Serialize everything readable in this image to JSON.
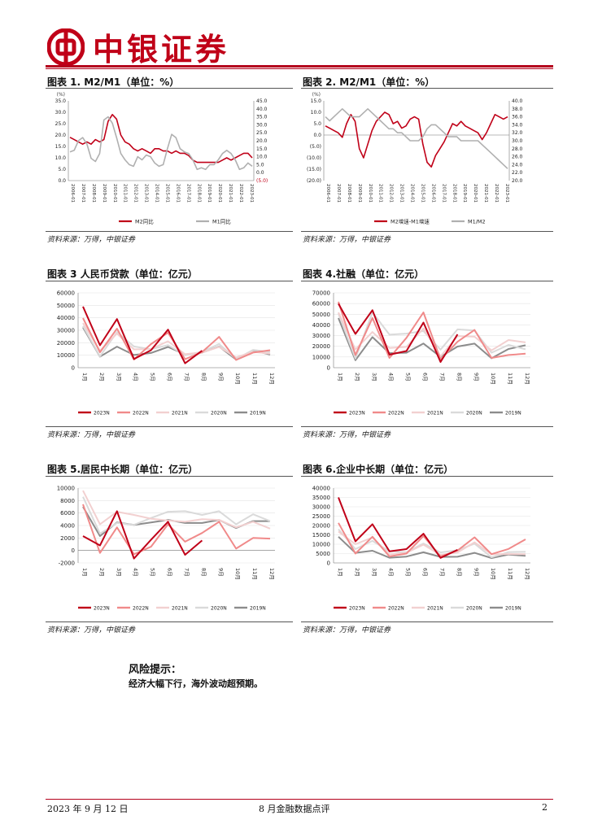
{
  "header": {
    "brand": "中银证券"
  },
  "panels": [
    {
      "title": "图表 1. M2/M1（单位：%）",
      "source": "资料来源：万得，中银证券",
      "chart_data": {
        "type": "line",
        "unit_label": "(%)",
        "left_ylim": [
          0,
          35
        ],
        "left_ticks": [
          "35.0",
          "30.0",
          "25.0",
          "20.0",
          "15.0",
          "10.0",
          "5.0",
          "0.0"
        ],
        "right_ylim": [
          -5,
          45
        ],
        "right_ticks": [
          "45.0",
          "40.0",
          "35.0",
          "30.0",
          "25.0",
          "20.0",
          "15.0",
          "10.0",
          "5.0",
          "0.0",
          "(5.0)"
        ],
        "x_ticks": [
          "2006-01",
          "2007-01",
          "2008-01",
          "2009-01",
          "2010-01",
          "2011-01",
          "2012-01",
          "2013-01",
          "2014-01",
          "2015-01",
          "2016-01",
          "2017-01",
          "2018-01",
          "2019-01",
          "2020-01",
          "2021-01",
          "2022-01",
          "2023-01"
        ],
        "series": [
          {
            "name": "M2同比",
            "axis": "left",
            "color": "#c00018",
            "values": [
              19,
              18,
              17,
              16,
              17,
              16,
              18,
              17,
              18,
              26,
              29,
              27,
              20,
              17,
              16,
              14,
              13,
              14,
              13,
              12,
              14,
              14,
              13,
              13,
              12,
              13,
              12,
              12,
              11,
              9,
              8,
              8,
              8,
              8,
              8,
              8,
              9,
              10,
              9,
              10,
              11,
              12,
              12,
              10
            ]
          },
          {
            "name": "M1同比",
            "axis": "right",
            "color": "#b0b0b0",
            "values": [
              13,
              14,
              20,
              22,
              18,
              9,
              7,
              12,
              33,
              35,
              31,
              22,
              12,
              8,
              5,
              4,
              10,
              8,
              11,
              10,
              6,
              4,
              5,
              15,
              24,
              22,
              15,
              13,
              12,
              8,
              2,
              3,
              2,
              5,
              5,
              8,
              12,
              14,
              12,
              8,
              2,
              3,
              6,
              4
            ]
          }
        ]
      }
    },
    {
      "title": "图表 2. M2/M1（单位：%）",
      "source": "资料来源：万得，中银证券",
      "chart_data": {
        "type": "line",
        "unit_label": "(%)",
        "left_ylim": [
          -20,
          15
        ],
        "left_ticks": [
          "15.0",
          "10.0",
          "5.0",
          "0.0",
          "(5.0)",
          "(10.0)",
          "(15.0)",
          "(20.0)"
        ],
        "right_ylim": [
          20,
          40
        ],
        "right_ticks": [
          "40.0",
          "38.0",
          "36.0",
          "34.0",
          "32.0",
          "30.0",
          "28.0",
          "26.0",
          "24.0",
          "22.0",
          "20.0"
        ],
        "x_ticks": [
          "2006-01",
          "2007-01",
          "2008-01",
          "2009-01",
          "2010-01",
          "2011-01",
          "2012-01",
          "2013-01",
          "2014-01",
          "2015-01",
          "2016-01",
          "2017-01",
          "2018-01",
          "2019-01",
          "2020-01",
          "2021-01",
          "2022-01",
          "2023-01"
        ],
        "series": [
          {
            "name": "M2增速-M1增速",
            "axis": "left",
            "color": "#c00018",
            "values": [
              4,
              3,
              2,
              1,
              -1,
              5,
              9,
              6,
              -6,
              -10,
              -4,
              2,
              6,
              8,
              10,
              9,
              5,
              6,
              3,
              4,
              7,
              8,
              7,
              -4,
              -12,
              -14,
              -9,
              -6,
              -3,
              1,
              5,
              4,
              6,
              4,
              3,
              2,
              1,
              -2,
              1,
              5,
              9,
              8,
              7,
              8
            ]
          },
          {
            "name": "M1/M2",
            "axis": "right",
            "color": "#b0b0b0",
            "values": [
              36,
              35,
              36,
              37,
              38,
              37,
              36,
              36,
              36,
              37,
              38,
              37,
              36,
              35,
              34,
              33,
              33,
              32,
              32,
              31,
              30,
              30,
              30,
              31,
              33,
              34,
              34,
              33,
              32,
              31,
              31,
              31,
              30,
              30,
              30,
              30,
              30,
              29,
              28,
              27,
              26,
              25,
              24,
              23
            ]
          }
        ]
      }
    },
    {
      "title": "图表 3 人民币贷款（单位：亿元）",
      "source": "资料来源：万得，中银证券",
      "chart_data": {
        "type": "line",
        "ylim": [
          0,
          60000
        ],
        "y_ticks": [
          "60000",
          "50000",
          "40000",
          "30000",
          "20000",
          "10000",
          "0"
        ],
        "categories": [
          "1月",
          "2月",
          "3月",
          "4月",
          "5月",
          "6月",
          "7月",
          "8月",
          "9月",
          "10月",
          "11月",
          "12月"
        ],
        "series": [
          {
            "name": "2023N",
            "color": "#c00018",
            "values": [
              49000,
              18000,
              39000,
              7000,
              14000,
              30500,
              3500,
              13600,
              null,
              null,
              null,
              null
            ]
          },
          {
            "name": "2022N",
            "color": "#f08a8a",
            "values": [
              39800,
              12300,
              31300,
              6500,
              18900,
              28100,
              6800,
              12500,
              24700,
              6200,
              12100,
              14000
            ]
          },
          {
            "name": "2021N",
            "color": "#f2d0d0",
            "values": [
              35800,
              13600,
              27300,
              14700,
              15000,
              21200,
              10800,
              12200,
              16600,
              8300,
              12700,
              11300
            ]
          },
          {
            "name": "2020N",
            "color": "#dadada",
            "values": [
              33400,
              9100,
              28500,
              17000,
              14800,
              18100,
              9900,
              12800,
              19000,
              6900,
              14300,
              12600
            ]
          },
          {
            "name": "2019N",
            "color": "#8c8c8c",
            "values": [
              32300,
              8900,
              16900,
              10200,
              11800,
              16600,
              10600,
              12100,
              16900,
              6600,
              13900,
              10500
            ]
          }
        ]
      }
    },
    {
      "title": "图表 4.社融（单位：亿元）",
      "source": "资料来源：万得，中银证券",
      "chart_data": {
        "type": "line",
        "ylim": [
          0,
          70000
        ],
        "y_ticks": [
          "70000",
          "60000",
          "50000",
          "40000",
          "30000",
          "20000",
          "10000",
          "0"
        ],
        "categories": [
          "1月",
          "2月",
          "3月",
          "4月",
          "5月",
          "6月",
          "7月",
          "8月",
          "9月",
          "10月",
          "11月",
          "12月"
        ],
        "series": [
          {
            "name": "2023N",
            "color": "#c00018",
            "values": [
              59800,
              31600,
              53800,
              12200,
              15600,
              42200,
              5300,
              31200,
              null,
              null,
              null,
              null
            ]
          },
          {
            "name": "2022N",
            "color": "#f08a8a",
            "values": [
              61700,
              11900,
              46500,
              9100,
              27900,
              51700,
              7600,
              24300,
              35300,
              9100,
              11900,
              13100
            ]
          },
          {
            "name": "2021N",
            "color": "#f2d0d0",
            "values": [
              51700,
              17100,
              33400,
              18500,
              19500,
              36700,
              10600,
              29600,
              29000,
              16200,
              25900,
              23700
            ]
          },
          {
            "name": "2020N",
            "color": "#dadada",
            "values": [
              50700,
              8600,
              51800,
              30900,
              31900,
              34300,
              16900,
              35800,
              34800,
              14000,
              21300,
              17200
            ]
          },
          {
            "name": "2019N",
            "color": "#8c8c8c",
            "values": [
              46400,
              7000,
              28600,
              13600,
              14000,
              22600,
              10100,
              19800,
              22500,
              8800,
              17500,
              21000
            ]
          }
        ]
      }
    },
    {
      "title": "图表 5.居民中长期（单位：亿元）",
      "source": "资料来源：万得，中银证券",
      "chart_data": {
        "type": "line",
        "ylim": [
          -2000,
          10000
        ],
        "y_ticks": [
          "10000",
          "8000",
          "6000",
          "4000",
          "2000",
          "0",
          "-2000"
        ],
        "categories": [
          "1月",
          "2月",
          "3月",
          "4月",
          "5月",
          "6月",
          "7月",
          "8月",
          "9月",
          "10月",
          "11月",
          "12月"
        ],
        "series": [
          {
            "name": "2023N",
            "color": "#c00018",
            "values": [
              2300,
              800,
              6300,
              -1300,
              1700,
              4600,
              -700,
              1600,
              null,
              null,
              null,
              null
            ]
          },
          {
            "name": "2022N",
            "color": "#f08a8a",
            "values": [
              7400,
              -400,
              3700,
              -600,
              600,
              4200,
              1400,
              2800,
              4600,
              300,
              2000,
              1900
            ]
          },
          {
            "name": "2021N",
            "color": "#f2d0d0",
            "values": [
              9600,
              4200,
              6200,
              5700,
              5100,
              4800,
              4600,
              5000,
              4900,
              3700,
              4600,
              3500
            ]
          },
          {
            "name": "2020N",
            "color": "#dadada",
            "values": [
              8600,
              2700,
              4400,
              4100,
              5200,
              6200,
              6300,
              5700,
              6300,
              4200,
              5800,
              4700
            ]
          },
          {
            "name": "2019N",
            "color": "#8c8c8c",
            "values": [
              7000,
              2300,
              4500,
              4100,
              4500,
              4900,
              4400,
              4400,
              4900,
              3600,
              4700,
              4700
            ]
          }
        ]
      }
    },
    {
      "title": "图表 6.企业中长期（单位：亿元）",
      "source": "资料来源：万得，中银证券",
      "chart_data": {
        "type": "line",
        "ylim": [
          0,
          40000
        ],
        "y_ticks": [
          "40000",
          "35000",
          "30000",
          "25000",
          "20000",
          "15000",
          "10000",
          "5000",
          "0"
        ],
        "categories": [
          "1月",
          "2月",
          "3月",
          "4月",
          "5月",
          "6月",
          "7月",
          "8月",
          "9月",
          "10月",
          "11月",
          "12月"
        ],
        "series": [
          {
            "name": "2023N",
            "color": "#c00018",
            "values": [
              35000,
              11500,
              20700,
              6200,
              7400,
              15600,
              2700,
              7000,
              null,
              null,
              null,
              null
            ]
          },
          {
            "name": "2022N",
            "color": "#f08a8a",
            "values": [
              21400,
              5000,
              14000,
              3500,
              5000,
              14400,
              3500,
              6600,
              13700,
              4700,
              7500,
              12600
            ]
          },
          {
            "name": "2021N",
            "color": "#f2d0d0",
            "values": [
              16800,
              10000,
              13600,
              4600,
              5400,
              9800,
              4200,
              5600,
              11000,
              4600,
              4800,
              4700
            ]
          },
          {
            "name": "2020N",
            "color": "#dadada",
            "values": [
              18000,
              7400,
              11800,
              6200,
              5700,
              10400,
              5600,
              6800,
              10300,
              3000,
              5800,
              5900
            ]
          },
          {
            "name": "2019N",
            "color": "#8c8c8c",
            "values": [
              14000,
              5400,
              6500,
              2800,
              3400,
              5700,
              3200,
              3300,
              5400,
              2600,
              4500,
              3800
            ]
          }
        ]
      }
    }
  ],
  "risk": {
    "title": "风险提示：",
    "text": "经济大幅下行，海外波动超预期。"
  },
  "footer": {
    "date": "2023 年 9 月 12 日",
    "doc": "8 月金融数据点评",
    "page": "2"
  }
}
